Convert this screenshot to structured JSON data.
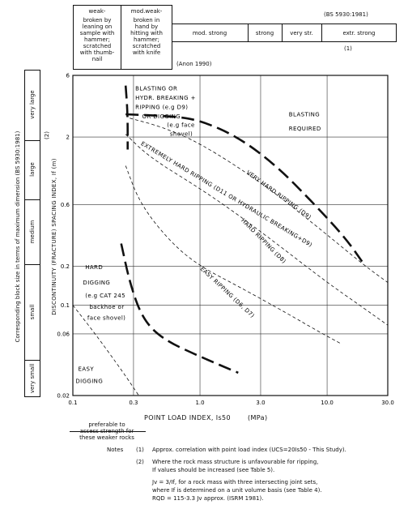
{
  "header": {
    "standard": "(BS 5930:1981)",
    "weak_title": "weak-",
    "weak_desc": [
      "broken by",
      "leaning on",
      "sample with",
      "hammer;",
      "scratched",
      "with thumb-",
      "nail"
    ],
    "modweak_title": "mod.weak-",
    "modweak_desc": [
      "broken in",
      "hand by",
      "hitting with",
      "hammer;",
      "scratched",
      "with knife"
    ],
    "anon": "(Anon 1990)",
    "strength_classes": [
      "mod. strong",
      "strong",
      "very str.",
      "extr. strong"
    ],
    "ref1": "(1)"
  },
  "left_scale": {
    "title": "Corresponding block size in terms of maximum dimension (BS 5930:1981)",
    "classes": [
      "very small",
      "small",
      "medium",
      "large",
      "very large"
    ],
    "ref2": "(2)"
  },
  "chart_data": {
    "type": "line",
    "xlabel": "POINT LOAD INDEX, Is50",
    "xunit": "(MPa)",
    "ylabel": "DISCONTINUITY (FRACTURE) SPACING INDEX, If (m)",
    "xscale": "log",
    "yscale": "log",
    "xlim": [
      0.1,
      30.0
    ],
    "ylim": [
      0.02,
      6
    ],
    "xticks": [
      "0.1",
      "0.3",
      "1.0",
      "3.0",
      "10.0",
      "30.0"
    ],
    "xtick_values": [
      0.1,
      0.3,
      1.0,
      3.0,
      10.0,
      30.0
    ],
    "yticks": [
      "0.02",
      "0.06",
      "0.1",
      "0.2",
      "0.6",
      "2",
      "6"
    ],
    "ytick_values": [
      0.02,
      0.06,
      0.1,
      0.2,
      0.6,
      2,
      6
    ],
    "grid": true,
    "series": [
      {
        "style": "dashed",
        "points": [
          [
            0.1,
            0.1
          ],
          [
            0.15,
            0.06
          ],
          [
            0.25,
            0.03
          ],
          [
            0.33,
            0.02
          ]
        ]
      },
      {
        "style": "long-dash",
        "points": [
          [
            0.24,
            0.3
          ],
          [
            0.28,
            0.15
          ],
          [
            0.35,
            0.08
          ],
          [
            0.5,
            0.055
          ],
          [
            1.0,
            0.04
          ],
          [
            2.0,
            0.03
          ]
        ]
      },
      {
        "style": "dashed",
        "points": [
          [
            0.26,
            1.2
          ],
          [
            0.34,
            0.6
          ],
          [
            0.6,
            0.3
          ],
          [
            1.0,
            0.2
          ],
          [
            2.0,
            0.14
          ],
          [
            5.0,
            0.085
          ],
          [
            8.0,
            0.065
          ],
          [
            13.0,
            0.05
          ]
        ]
      },
      {
        "style": "dashed",
        "points": [
          [
            0.26,
            2.1
          ],
          [
            0.4,
            1.4
          ],
          [
            1.0,
            0.8
          ],
          [
            2.0,
            0.5
          ],
          [
            4.0,
            0.3
          ],
          [
            10.0,
            0.15
          ],
          [
            18.0,
            0.1
          ],
          [
            30.0,
            0.07
          ]
        ]
      },
      {
        "style": "dashed",
        "points": [
          [
            0.28,
            2.8
          ],
          [
            0.5,
            2.4
          ],
          [
            1.0,
            1.8
          ],
          [
            3.0,
            0.9
          ],
          [
            8.0,
            0.42
          ],
          [
            20.0,
            0.2
          ],
          [
            30.0,
            0.15
          ]
        ]
      },
      {
        "style": "long-dash",
        "points": [
          [
            0.26,
            3.0
          ],
          [
            0.6,
            2.9
          ],
          [
            1.0,
            2.7
          ],
          [
            2.0,
            2.0
          ],
          [
            4.0,
            1.2
          ],
          [
            8.0,
            0.6
          ],
          [
            14.0,
            0.33
          ],
          [
            20.0,
            0.2
          ]
        ]
      },
      {
        "style": "long-dash",
        "points": [
          [
            0.26,
            5.0
          ],
          [
            0.27,
            3.0
          ],
          [
            0.27,
            1.6
          ]
        ]
      }
    ],
    "annotations": [
      {
        "text": "BLASTING   OR",
        "x": 0.31,
        "y": 4.6
      },
      {
        "text": "HYDR. BREAKING +",
        "x": 0.31,
        "y": 3.9
      },
      {
        "text": "RIPPING (e.g D9)",
        "x": 0.31,
        "y": 3.3
      },
      {
        "text": "OR DIGGING",
        "x": 0.35,
        "y": 2.8
      },
      {
        "text": "(e.g face",
        "x": 0.55,
        "y": 2.4
      },
      {
        "text": "shovel)",
        "x": 0.58,
        "y": 2.05
      },
      {
        "text": "BLASTING",
        "x": 5.0,
        "y": 2.9
      },
      {
        "text": "REQUIRED",
        "x": 5.0,
        "y": 2.25
      },
      {
        "text": "EXTREMELY HARD RIPPING (D11  OR HYDRAULIC BREAKING+D9)",
        "x": 0.34,
        "y": 1.75,
        "angle": 31
      },
      {
        "text": "VERY  HARD  RIPPING  (D9)",
        "x": 2.3,
        "y": 1.05,
        "angle": 36
      },
      {
        "text": "HARD  RIPPING  (D8)",
        "x": 2.1,
        "y": 0.45,
        "angle": 45
      },
      {
        "text": "EASY  RIPPING  (D6, D7)",
        "x": 1.0,
        "y": 0.19,
        "angle": 43
      },
      {
        "text": "HARD",
        "x": 0.125,
        "y": 0.19
      },
      {
        "text": "DIGGING",
        "x": 0.12,
        "y": 0.145
      },
      {
        "text": "(e.g CAT 245",
        "x": 0.125,
        "y": 0.115
      },
      {
        "text": "backhoe  or",
        "x": 0.135,
        "y": 0.094
      },
      {
        "text": "face shovel)",
        "x": 0.13,
        "y": 0.077
      },
      {
        "text": "EASY",
        "x": 0.11,
        "y": 0.031
      },
      {
        "text": "DIGGING",
        "x": 0.105,
        "y": 0.025
      }
    ]
  },
  "below": {
    "preferable": [
      "preferable to",
      "assess strength for",
      "these weaker rocks"
    ]
  },
  "notes": {
    "label": "Notes",
    "n1_num": "(1)",
    "n1": "Approx. correlation with point load index (UCS=20Is50 - This Study).",
    "n2_num": "(2)",
    "n2a": "Where the rock mass structure is unfavourable for ripping,",
    "n2b": "If values should be increased (see Table 5).",
    "j1": "Jv = 3/If, for a rock mass with three intersecting joint sets,",
    "j2": "where If is determined on a unit volume basis (see Table 4).",
    "j3": "RQD = 115-3.3 Jv approx. (ISRM 1981)."
  }
}
